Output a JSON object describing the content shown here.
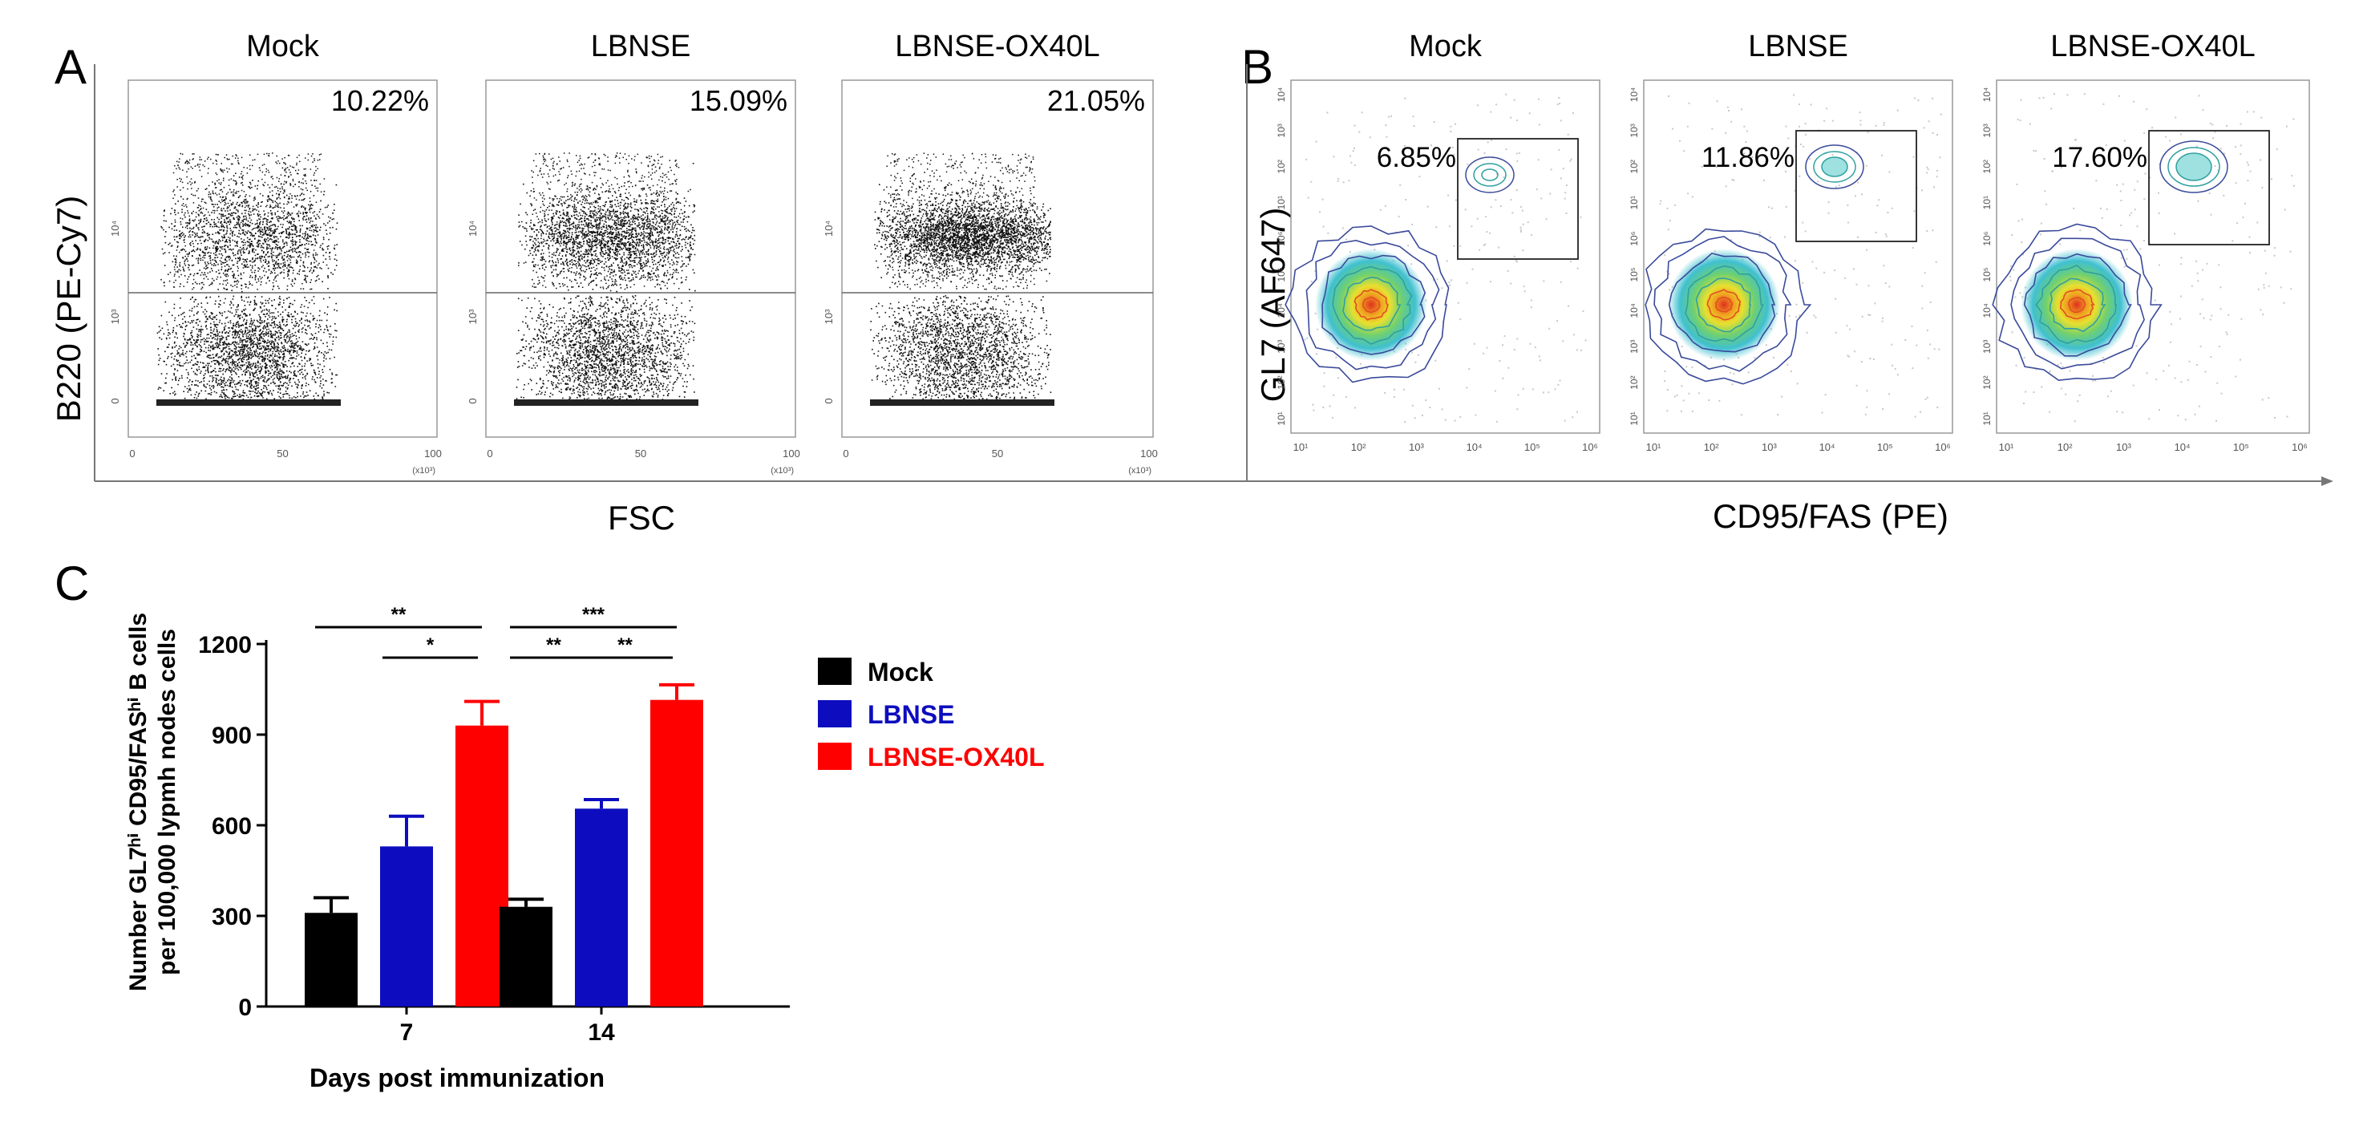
{
  "panel_a": {
    "letter": "A",
    "y_label": "B220 (PE-Cy7)",
    "x_label": "FSC",
    "x_ticks": [
      "0",
      "50",
      "100"
    ],
    "x_scale_note": "(x10³)",
    "y_ticks": [
      "0",
      "10³",
      "10⁴"
    ],
    "plots": [
      {
        "title": "Mock",
        "percent": "10.22%",
        "above_gate_fraction": 0.1022
      },
      {
        "title": "LBNSE",
        "percent": "15.09%",
        "above_gate_fraction": 0.1509
      },
      {
        "title": "LBNSE-OX40L",
        "percent": "21.05%",
        "above_gate_fraction": 0.2105
      }
    ]
  },
  "panel_b": {
    "letter": "B",
    "y_label": "GL7 (AF647)",
    "x_label": "CD95/FAS (PE)",
    "axis_ticks": [
      "10¹",
      "10²",
      "10³",
      "10⁴",
      "10⁵",
      "10⁶"
    ],
    "plots": [
      {
        "title": "Mock",
        "percent": "6.85%"
      },
      {
        "title": "LBNSE",
        "percent": "11.86%"
      },
      {
        "title": "LBNSE-OX40L",
        "percent": "17.60%"
      }
    ]
  },
  "panel_c": {
    "letter": "C"
  },
  "chart_data": {
    "type": "bar",
    "title": "",
    "xlabel": "Days post immunization",
    "ylabel_line1": "Number GL7ʰⁱ CD95/FASʰⁱ B cells",
    "ylabel_line2": "per 100,000 lypmh nodes cells",
    "categories": [
      "7",
      "14"
    ],
    "ylim": [
      0,
      1200
    ],
    "yticks": [
      "0",
      "300",
      "600",
      "900",
      "1200"
    ],
    "series": [
      {
        "name": "Mock",
        "color": "#000000",
        "values": [
          310,
          330
        ],
        "errors": [
          50,
          25
        ]
      },
      {
        "name": "LBNSE",
        "color": "#0d0dbf",
        "values": [
          530,
          655
        ],
        "errors": [
          100,
          30
        ]
      },
      {
        "name": "LBNSE-OX40L",
        "color": "#ff0000",
        "values": [
          930,
          1015
        ],
        "errors": [
          80,
          50
        ]
      }
    ],
    "significance": [
      {
        "label": "**",
        "group": 0,
        "from": 0,
        "to": 2,
        "level": 1
      },
      {
        "label": "*",
        "group": 0,
        "from": 1,
        "to": 2,
        "level": 0
      },
      {
        "label": "***",
        "group": 1,
        "from": 0,
        "to": 2,
        "level": 1
      },
      {
        "label": "**",
        "group": 1,
        "from": 0,
        "to": 1,
        "level": 0
      },
      {
        "label": "**",
        "group": 1,
        "from": 1,
        "to": 2,
        "level": 0
      }
    ]
  }
}
